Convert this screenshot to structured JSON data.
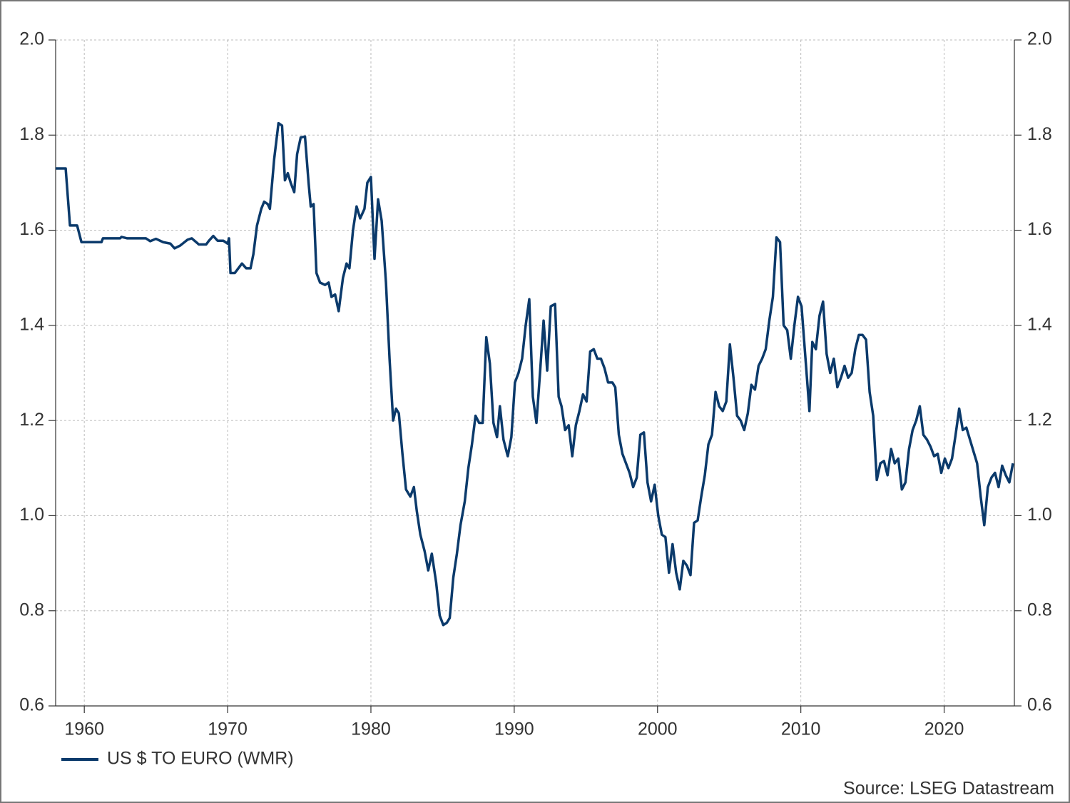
{
  "chart_data": {
    "type": "line",
    "source": "Source: LSEG Datastream",
    "xlim": [
      1958,
      2024.9
    ],
    "xticks": [
      1960,
      1970,
      1980,
      1990,
      2000,
      2010,
      2020
    ],
    "ylim": [
      0.6,
      2.0
    ],
    "yticks": [
      0.6,
      0.8,
      {
        "value": 1.0,
        "label": "1.0"
      },
      1.2,
      1.4,
      1.6,
      1.8,
      {
        "value": 2.0,
        "label": "2.0"
      }
    ],
    "grid": true,
    "legend": "bottom-left",
    "right_axis": true,
    "x": [
      1958.0,
      1958.7,
      1959.0,
      1959.5,
      1959.8,
      1961.2,
      1961.3,
      1962.5,
      1962.6,
      1963.0,
      1964.3,
      1964.6,
      1965.0,
      1965.5,
      1966.0,
      1966.3,
      1966.7,
      1967.2,
      1967.5,
      1968.0,
      1968.5,
      1968.7,
      1969.0,
      1969.3,
      1969.7,
      1970.0,
      1970.1,
      1970.2,
      1970.5,
      1971.0,
      1971.3,
      1971.6,
      1971.8,
      1972.05,
      1972.35,
      1972.55,
      1972.8,
      1972.95,
      1973.25,
      1973.55,
      1973.8,
      1974.0,
      1974.2,
      1974.4,
      1974.65,
      1974.85,
      1975.1,
      1975.4,
      1975.65,
      1975.8,
      1976.0,
      1976.2,
      1976.45,
      1976.8,
      1977.05,
      1977.25,
      1977.5,
      1977.75,
      1978.05,
      1978.3,
      1978.5,
      1978.75,
      1979.0,
      1979.25,
      1979.55,
      1979.75,
      1980.0,
      1980.25,
      1980.5,
      1980.75,
      1981.05,
      1981.3,
      1981.55,
      1981.75,
      1981.95,
      1982.2,
      1982.45,
      1982.75,
      1983.0,
      1983.2,
      1983.45,
      1983.75,
      1984.0,
      1984.25,
      1984.55,
      1984.8,
      1985.05,
      1985.3,
      1985.5,
      1985.75,
      1986.0,
      1986.25,
      1986.55,
      1986.8,
      1987.05,
      1987.3,
      1987.55,
      1987.8,
      1988.05,
      1988.3,
      1988.55,
      1988.8,
      1989.0,
      1989.25,
      1989.55,
      1989.8,
      1990.05,
      1990.3,
      1990.55,
      1990.8,
      1991.05,
      1991.3,
      1991.55,
      1991.8,
      1992.05,
      1992.3,
      1992.55,
      1992.85,
      1993.1,
      1993.3,
      1993.55,
      1993.8,
      1994.05,
      1994.3,
      1994.55,
      1994.8,
      1995.05,
      1995.3,
      1995.55,
      1995.8,
      1996.05,
      1996.3,
      1996.55,
      1996.85,
      1997.05,
      1997.3,
      1997.55,
      1997.8,
      1998.05,
      1998.3,
      1998.55,
      1998.8,
      1999.05,
      1999.3,
      1999.55,
      1999.8,
      2000.05,
      2000.3,
      2000.55,
      2000.8,
      2001.05,
      2001.3,
      2001.55,
      2001.8,
      2002.05,
      2002.3,
      2002.55,
      2002.8,
      2003.05,
      2003.3,
      2003.55,
      2003.8,
      2004.05,
      2004.3,
      2004.55,
      2004.8,
      2005.05,
      2005.3,
      2005.55,
      2005.8,
      2006.05,
      2006.3,
      2006.55,
      2006.8,
      2007.05,
      2007.3,
      2007.55,
      2007.8,
      2008.05,
      2008.3,
      2008.55,
      2008.8,
      2009.05,
      2009.3,
      2009.55,
      2009.8,
      2010.05,
      2010.3,
      2010.6,
      2010.8,
      2011.05,
      2011.3,
      2011.55,
      2011.8,
      2012.05,
      2012.3,
      2012.55,
      2012.8,
      2013.05,
      2013.3,
      2013.55,
      2013.8,
      2014.05,
      2014.3,
      2014.55,
      2014.8,
      2015.05,
      2015.3,
      2015.55,
      2015.8,
      2016.05,
      2016.3,
      2016.55,
      2016.8,
      2017.05,
      2017.3,
      2017.55,
      2017.8,
      2018.05,
      2018.3,
      2018.55,
      2018.8,
      2019.05,
      2019.3,
      2019.55,
      2019.8,
      2020.05,
      2020.3,
      2020.55,
      2020.8,
      2021.05,
      2021.3,
      2021.55,
      2021.8,
      2022.05,
      2022.3,
      2022.55,
      2022.8,
      2023.05,
      2023.3,
      2023.55,
      2023.8,
      2024.05,
      2024.3,
      2024.55,
      2024.8
    ],
    "series": [
      {
        "name": "US $ TO EURO (WMR)",
        "color": "#0b3a6b",
        "values": [
          1.73,
          1.73,
          1.61,
          1.61,
          1.575,
          1.575,
          1.583,
          1.583,
          1.586,
          1.583,
          1.583,
          1.577,
          1.582,
          1.575,
          1.572,
          1.562,
          1.568,
          1.58,
          1.583,
          1.57,
          1.57,
          1.578,
          1.588,
          1.578,
          1.578,
          1.572,
          1.583,
          1.51,
          1.51,
          1.53,
          1.52,
          1.52,
          1.55,
          1.61,
          1.645,
          1.66,
          1.655,
          1.645,
          1.75,
          1.825,
          1.82,
          1.705,
          1.72,
          1.7,
          1.68,
          1.76,
          1.795,
          1.797,
          1.7,
          1.65,
          1.655,
          1.51,
          1.49,
          1.485,
          1.49,
          1.46,
          1.465,
          1.43,
          1.5,
          1.53,
          1.52,
          1.6,
          1.65,
          1.625,
          1.645,
          1.7,
          1.712,
          1.54,
          1.665,
          1.62,
          1.49,
          1.33,
          1.2,
          1.225,
          1.215,
          1.13,
          1.055,
          1.04,
          1.06,
          1.01,
          0.96,
          0.925,
          0.885,
          0.92,
          0.86,
          0.79,
          0.77,
          0.775,
          0.785,
          0.87,
          0.92,
          0.98,
          1.03,
          1.1,
          1.15,
          1.21,
          1.195,
          1.195,
          1.375,
          1.32,
          1.195,
          1.165,
          1.23,
          1.16,
          1.125,
          1.165,
          1.28,
          1.3,
          1.33,
          1.4,
          1.455,
          1.25,
          1.195,
          1.3,
          1.41,
          1.305,
          1.44,
          1.445,
          1.25,
          1.23,
          1.18,
          1.19,
          1.125,
          1.19,
          1.22,
          1.255,
          1.24,
          1.345,
          1.35,
          1.33,
          1.33,
          1.31,
          1.28,
          1.28,
          1.27,
          1.17,
          1.13,
          1.11,
          1.09,
          1.06,
          1.08,
          1.17,
          1.175,
          1.07,
          1.03,
          1.065,
          1.0,
          0.96,
          0.955,
          0.88,
          0.94,
          0.88,
          0.845,
          0.905,
          0.895,
          0.875,
          0.985,
          0.99,
          1.04,
          1.085,
          1.15,
          1.17,
          1.26,
          1.23,
          1.22,
          1.24,
          1.36,
          1.29,
          1.21,
          1.2,
          1.18,
          1.215,
          1.275,
          1.265,
          1.315,
          1.33,
          1.35,
          1.41,
          1.46,
          1.585,
          1.575,
          1.4,
          1.39,
          1.33,
          1.4,
          1.46,
          1.44,
          1.34,
          1.22,
          1.365,
          1.35,
          1.42,
          1.45,
          1.34,
          1.3,
          1.33,
          1.27,
          1.29,
          1.315,
          1.29,
          1.3,
          1.35,
          1.38,
          1.38,
          1.37,
          1.26,
          1.21,
          1.075,
          1.11,
          1.115,
          1.085,
          1.14,
          1.11,
          1.12,
          1.055,
          1.07,
          1.14,
          1.18,
          1.2,
          1.23,
          1.17,
          1.16,
          1.145,
          1.125,
          1.13,
          1.09,
          1.12,
          1.1,
          1.12,
          1.17,
          1.225,
          1.18,
          1.185,
          1.16,
          1.135,
          1.11,
          1.04,
          0.98,
          1.06,
          1.08,
          1.09,
          1.06,
          1.105,
          1.085,
          1.07,
          1.11
        ]
      }
    ]
  }
}
